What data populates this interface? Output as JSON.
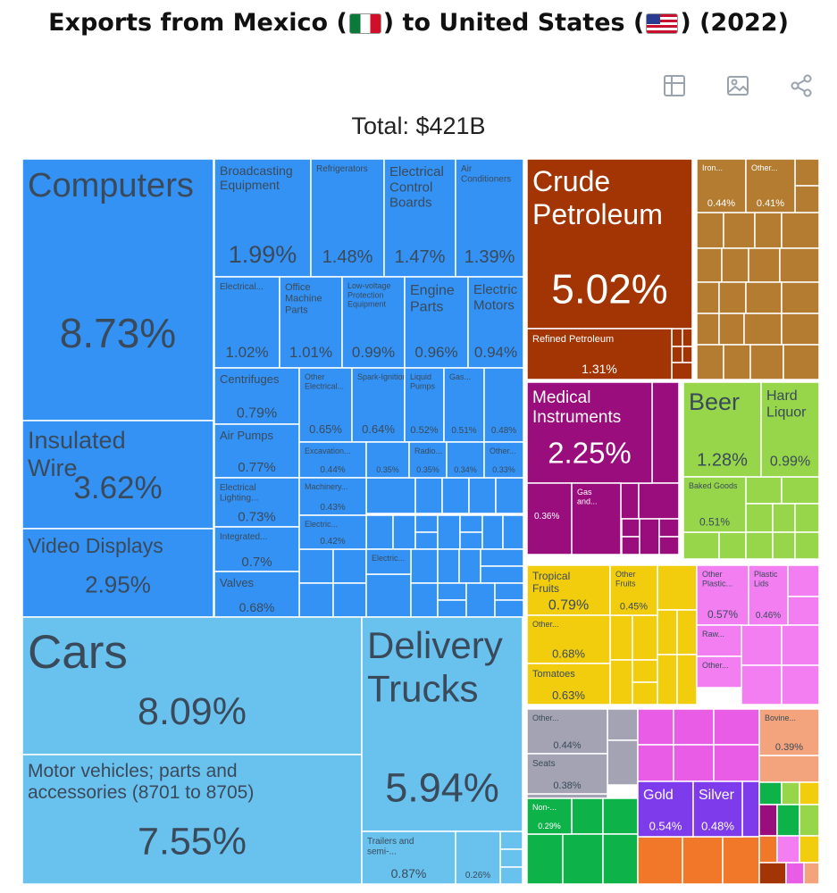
{
  "header": {
    "title_left": "Exports from Mexico (",
    "title_mid": ") to United States (",
    "title_right": ") (2022)",
    "total": "Total: $421B"
  },
  "toolbar": {
    "icons": [
      "table-icon",
      "image-icon",
      "share-icon"
    ]
  },
  "colors": {
    "machinery": "#3492f5",
    "transportation": "#69c1ee",
    "minerals": "#a33505",
    "metals": "#b37c30",
    "instruments": "#9a0d7c",
    "foodstuffs": "#97d64a",
    "vegetables": "#f2cd0d",
    "plastics": "#f27ef1",
    "miscellaneous": "#a3a3b3",
    "precious_metals": "#7d3bec",
    "textiles": "#0db348",
    "stone_glass": "#e85ce6",
    "animal_products": "#f4a47c",
    "other": "#f07828"
  },
  "chart_data": {
    "type": "treemap",
    "title": "Exports from Mexico to United States (2022)",
    "total": "$421B",
    "items": [
      {
        "name": "Computers",
        "value": 8.73,
        "label": "8.73%",
        "group": "machinery"
      },
      {
        "name": "Insulated Wire",
        "value": 3.62,
        "label": "3.62%",
        "group": "machinery"
      },
      {
        "name": "Video Displays",
        "value": 2.95,
        "label": "2.95%",
        "group": "machinery"
      },
      {
        "name": "Broadcasting Equipment",
        "value": 1.99,
        "label": "1.99%",
        "group": "machinery"
      },
      {
        "name": "Refrigerators",
        "value": 1.48,
        "label": "1.48%",
        "group": "machinery"
      },
      {
        "name": "Electrical Control Boards",
        "value": 1.47,
        "label": "1.47%",
        "group": "machinery"
      },
      {
        "name": "Air Conditioners",
        "value": 1.39,
        "label": "1.39%",
        "group": "machinery"
      },
      {
        "name": "Electrical...",
        "value": 1.02,
        "label": "1.02%",
        "group": "machinery"
      },
      {
        "name": "Office Machine Parts",
        "value": 1.01,
        "label": "1.01%",
        "group": "machinery"
      },
      {
        "name": "Low-voltage Protection Equipment",
        "value": 0.99,
        "label": "0.99%",
        "group": "machinery"
      },
      {
        "name": "Engine Parts",
        "value": 0.96,
        "label": "0.96%",
        "group": "machinery"
      },
      {
        "name": "Electric Motors",
        "value": 0.94,
        "label": "0.94%",
        "group": "machinery"
      },
      {
        "name": "Centrifuges",
        "value": 0.79,
        "label": "0.79%",
        "group": "machinery"
      },
      {
        "name": "Air Pumps",
        "value": 0.77,
        "label": "0.77%",
        "group": "machinery"
      },
      {
        "name": "Electrical Lighting...",
        "value": 0.73,
        "label": "0.73%",
        "group": "machinery"
      },
      {
        "name": "Integrated...",
        "value": 0.7,
        "label": "0.7%",
        "group": "machinery"
      },
      {
        "name": "Valves",
        "value": 0.68,
        "label": "0.68%",
        "group": "machinery"
      },
      {
        "name": "Other Electrical...",
        "value": 0.65,
        "label": "0.65%",
        "group": "machinery"
      },
      {
        "name": "Spark-Ignition...",
        "value": 0.64,
        "label": "0.64%",
        "group": "machinery"
      },
      {
        "name": "Liquid Pumps",
        "value": 0.52,
        "label": "0.52%",
        "group": "machinery"
      },
      {
        "name": "Gas...",
        "value": 0.51,
        "label": "0.51%",
        "group": "machinery"
      },
      {
        "name": "",
        "value": 0.48,
        "label": "0.48%",
        "group": "machinery"
      },
      {
        "name": "Excavation...",
        "value": 0.44,
        "label": "0.44%",
        "group": "machinery"
      },
      {
        "name": "",
        "value": 0.35,
        "label": "0.35%",
        "group": "machinery"
      },
      {
        "name": "Radio...",
        "value": 0.35,
        "label": "0.35%",
        "group": "machinery"
      },
      {
        "name": "",
        "value": 0.34,
        "label": "0.34%",
        "group": "machinery"
      },
      {
        "name": "Other...",
        "value": 0.33,
        "label": "0.33%",
        "group": "machinery"
      },
      {
        "name": "Machinery...",
        "value": 0.43,
        "label": "0.43%",
        "group": "machinery"
      },
      {
        "name": "Electric...",
        "value": 0.42,
        "label": "0.42%",
        "group": "machinery"
      },
      {
        "name": "Electric...",
        "value": null,
        "label": "",
        "group": "machinery"
      },
      {
        "name": "Cars",
        "value": 8.09,
        "label": "8.09%",
        "group": "transportation"
      },
      {
        "name": "Motor vehicles; parts and accessories (8701 to 8705)",
        "value": 7.55,
        "label": "7.55%",
        "group": "transportation"
      },
      {
        "name": "Delivery Trucks",
        "value": 5.94,
        "label": "5.94%",
        "group": "transportation"
      },
      {
        "name": "Trailers and semi-...",
        "value": 0.87,
        "label": "0.87%",
        "group": "transportation"
      },
      {
        "name": "",
        "value": 0.26,
        "label": "0.26%",
        "group": "transportation"
      },
      {
        "name": "Crude Petroleum",
        "value": 5.02,
        "label": "5.02%",
        "group": "minerals"
      },
      {
        "name": "Refined Petroleum",
        "value": 1.31,
        "label": "1.31%",
        "group": "minerals"
      },
      {
        "name": "Iron...",
        "value": 0.44,
        "label": "0.44%",
        "group": "metals"
      },
      {
        "name": "Other...",
        "value": 0.41,
        "label": "0.41%",
        "group": "metals"
      },
      {
        "name": "Medical Instruments",
        "value": 2.25,
        "label": "2.25%",
        "group": "instruments"
      },
      {
        "name": "",
        "value": 0.36,
        "label": "0.36%",
        "group": "instruments"
      },
      {
        "name": "Gas and...",
        "value": null,
        "label": "",
        "group": "instruments"
      },
      {
        "name": "Beer",
        "value": 1.28,
        "label": "1.28%",
        "group": "foodstuffs"
      },
      {
        "name": "Hard Liquor",
        "value": 0.99,
        "label": "0.99%",
        "group": "foodstuffs"
      },
      {
        "name": "Baked Goods",
        "value": 0.51,
        "label": "0.51%",
        "group": "foodstuffs"
      },
      {
        "name": "Tropical Fruits",
        "value": 0.79,
        "label": "0.79%",
        "group": "vegetables"
      },
      {
        "name": "Other Fruits",
        "value": 0.45,
        "label": "0.45%",
        "group": "vegetables"
      },
      {
        "name": "Other...",
        "value": 0.68,
        "label": "0.68%",
        "group": "vegetables"
      },
      {
        "name": "Tomatoes",
        "value": 0.63,
        "label": "0.63%",
        "group": "vegetables"
      },
      {
        "name": "Other Plastic...",
        "value": 0.57,
        "label": "0.57%",
        "group": "plastics"
      },
      {
        "name": "Plastic Lids",
        "value": 0.46,
        "label": "0.46%",
        "group": "plastics"
      },
      {
        "name": "Raw...",
        "value": null,
        "label": "",
        "group": "plastics"
      },
      {
        "name": "Other...",
        "value": null,
        "label": "",
        "group": "plastics"
      },
      {
        "name": "Other...",
        "value": 0.44,
        "label": "0.44%",
        "group": "miscellaneous"
      },
      {
        "name": "Seats",
        "value": 0.38,
        "label": "0.38%",
        "group": "miscellaneous"
      },
      {
        "name": "Non-...",
        "value": 0.29,
        "label": "0.29%",
        "group": "textiles"
      },
      {
        "name": "Gold",
        "value": 0.54,
        "label": "0.54%",
        "group": "precious_metals"
      },
      {
        "name": "Silver",
        "value": 0.48,
        "label": "0.48%",
        "group": "precious_metals"
      },
      {
        "name": "Bovine...",
        "value": 0.39,
        "label": "0.39%",
        "group": "animal_products"
      }
    ]
  }
}
